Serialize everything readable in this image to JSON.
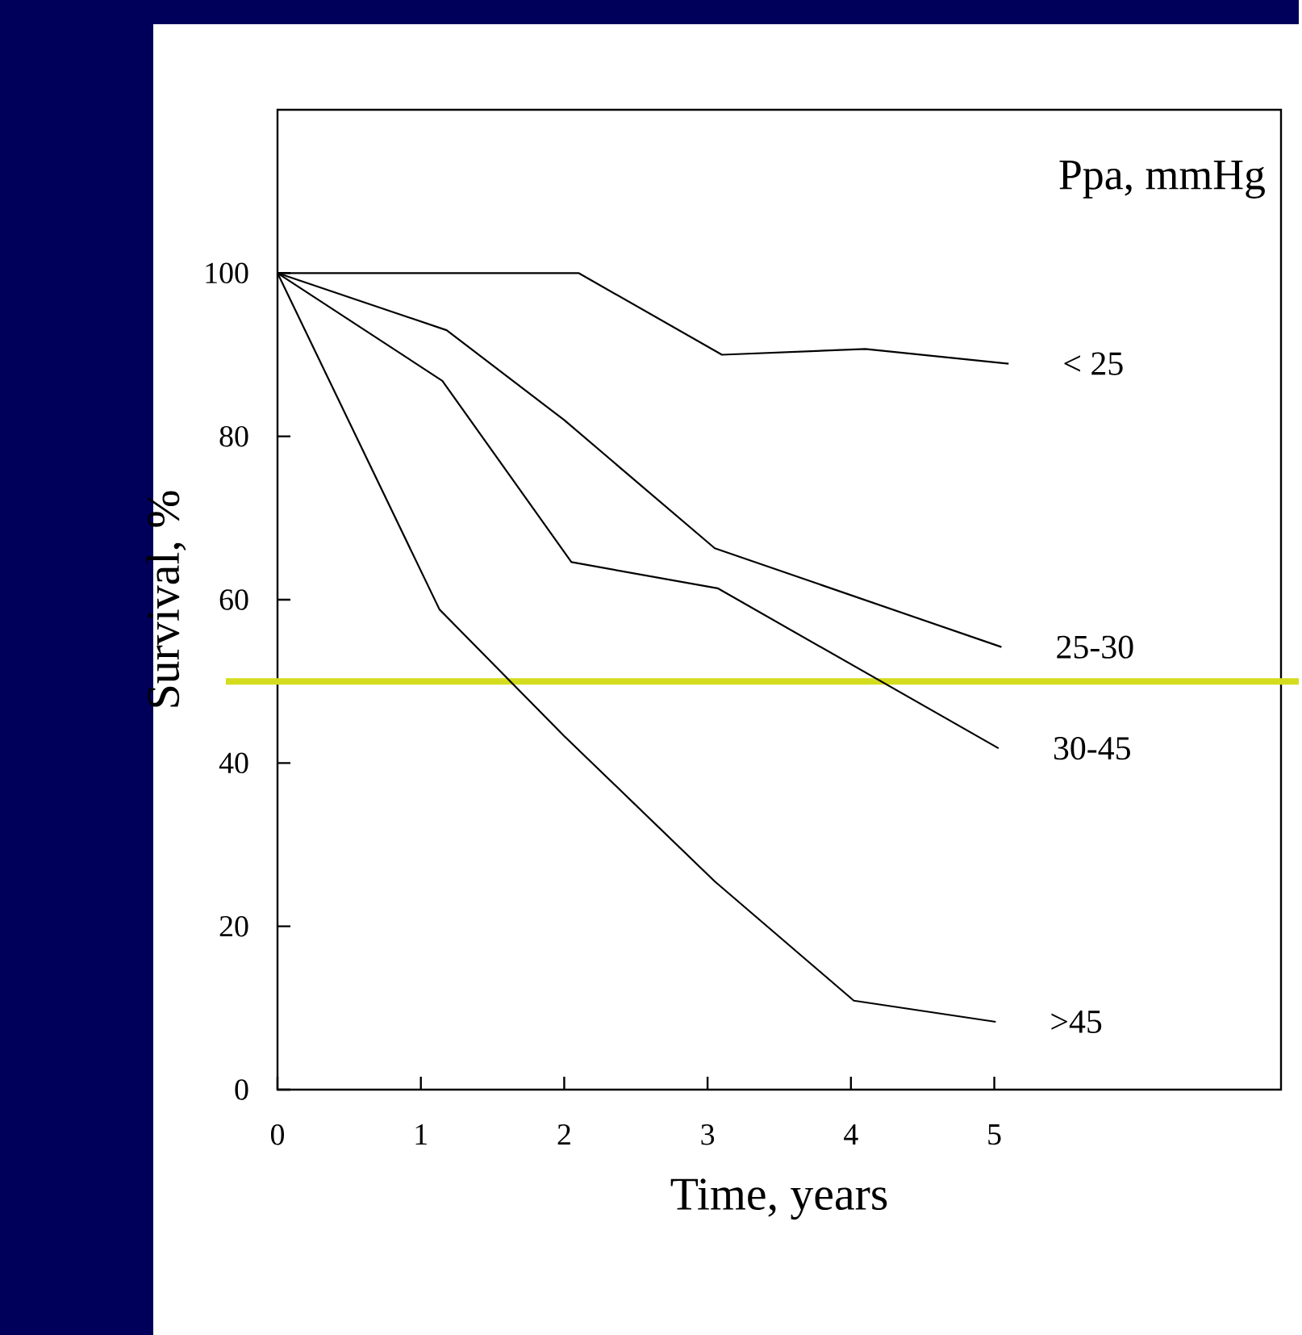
{
  "chart_data": {
    "type": "line",
    "xlabel": "Time, years",
    "ylabel": "Survival, %",
    "legend_title": "Ppa, mmHg",
    "xlim": [
      0,
      7
    ],
    "ylim": [
      0,
      120
    ],
    "xticks": [
      0,
      1,
      2,
      3,
      4,
      5
    ],
    "yticks": [
      0,
      20,
      40,
      60,
      80,
      100
    ],
    "marker": "none",
    "line_style": "solid",
    "series": [
      {
        "name": "< 25",
        "color": "#000000",
        "x": [
          0,
          2.1,
          3.1,
          4.1,
          5.1
        ],
        "values": [
          100,
          100,
          90,
          90.7,
          88.9
        ]
      },
      {
        "name": "25-30",
        "color": "#000000",
        "x": [
          0,
          1.18,
          2,
          3.05,
          5.05
        ],
        "values": [
          100,
          93,
          82,
          66.3,
          54.2
        ]
      },
      {
        "name": "30-45",
        "color": "#000000",
        "x": [
          0,
          1.15,
          2.05,
          3.07,
          5.03
        ],
        "values": [
          100,
          86.8,
          64.6,
          61.4,
          41.8
        ]
      },
      {
        "name": ">45",
        "color": "#000000",
        "x": [
          0,
          1.13,
          2,
          3.05,
          4.02,
          5.01
        ],
        "values": [
          100,
          58.8,
          43.3,
          25.5,
          10.9,
          8.3
        ]
      }
    ],
    "ref_lines": [
      {
        "axis": "y",
        "value": 50,
        "color": "#d4dc1e"
      }
    ]
  }
}
